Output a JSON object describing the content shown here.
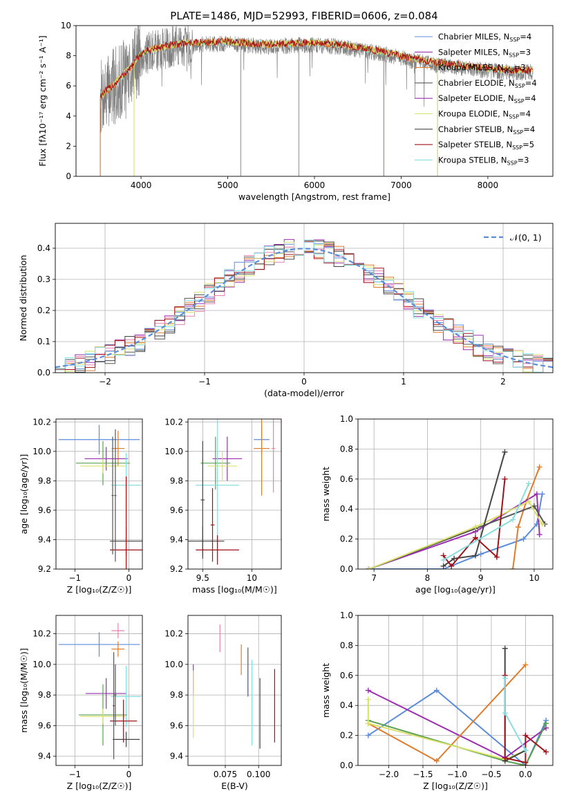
{
  "title": "PLATE=1486, MJD=52993, FIBERID=0606, z=0.084",
  "colors": {
    "chabrier_miles": "#5b8cdb",
    "salpeter_miles": "#9b2fb0",
    "kroupa_miles": "#e07b2a",
    "chabrier_elodie": "#555555",
    "salpeter_elodie": "#9b2fb0",
    "kroupa_elodie": "#d8e06a",
    "chabrier_stelib": "#444444",
    "salpeter_stelib": "#a01018",
    "kroupa_stelib": "#88dde0",
    "data": "#808080",
    "pink": "#e880b0",
    "green": "#5aa050",
    "normal": "#5b8cdb"
  },
  "chart_data": [
    {
      "id": "spectrum",
      "type": "line",
      "xlabel": "wavelength [Angstrom, rest frame]",
      "ylabel": "Flux [fλ10⁻¹⁷ erg cm⁻² s⁻¹ A⁻¹]",
      "xlim": [
        3250,
        8750
      ],
      "ylim": [
        0,
        10
      ],
      "xticks": [
        4000,
        5000,
        6000,
        7000,
        8000
      ],
      "yticks": [
        0,
        2,
        4,
        6,
        8,
        10
      ],
      "grid": false,
      "legend_position": "upper-right",
      "legend": [
        {
          "label": "Chabrier MILES, N",
          "sub": "SSP",
          "suffix": "=4",
          "color": "#5b8cdb"
        },
        {
          "label": "Salpeter MILES, N",
          "sub": "SSP",
          "suffix": "=3",
          "color": "#9b2fb0"
        },
        {
          "label": "Kroupa MILES, N",
          "sub": "SSP",
          "suffix": "=3",
          "color": "#e07b2a"
        },
        {
          "label": "Chabrier ELODIE, N",
          "sub": "SSP",
          "suffix": "=4",
          "color": "#555555"
        },
        {
          "label": "Salpeter ELODIE, N",
          "sub": "SSP",
          "suffix": "=4",
          "color": "#9b2fb0"
        },
        {
          "label": "Kroupa ELODIE, N",
          "sub": "SSP",
          "suffix": "=4",
          "color": "#d8e06a"
        },
        {
          "label": "Chabrier STELIB, N",
          "sub": "SSP",
          "suffix": "=4",
          "color": "#444444"
        },
        {
          "label": "Salpeter STELIB, N",
          "sub": "SSP",
          "suffix": "=5",
          "color": "#a01018"
        },
        {
          "label": "Kroupa STELIB, N",
          "sub": "SSP",
          "suffix": "=3",
          "color": "#88dde0"
        }
      ],
      "continuum": [
        [
          3530,
          5.2
        ],
        [
          3700,
          6.0
        ],
        [
          3900,
          7.2
        ],
        [
          4000,
          8.0
        ],
        [
          4200,
          8.4
        ],
        [
          4500,
          8.7
        ],
        [
          5000,
          8.8
        ],
        [
          5200,
          8.7
        ],
        [
          5500,
          8.6
        ],
        [
          5800,
          8.7
        ],
        [
          6000,
          8.7
        ],
        [
          6300,
          8.6
        ],
        [
          6600,
          8.3
        ],
        [
          6900,
          8.0
        ],
        [
          7100,
          7.7
        ],
        [
          7400,
          7.4
        ],
        [
          7700,
          7.2
        ],
        [
          8000,
          7.0
        ],
        [
          8300,
          6.9
        ],
        [
          8500,
          6.9
        ]
      ],
      "dropouts": [
        3530,
        3920,
        5150,
        5820,
        6800,
        7420
      ]
    },
    {
      "id": "residuals",
      "type": "histogram",
      "xlabel": "(data-model)/error",
      "ylabel": "Normed distribution",
      "xlim": [
        -2.5,
        2.5
      ],
      "ylim": [
        0,
        0.48
      ],
      "xticks": [
        -2,
        -1,
        0,
        1,
        2
      ],
      "yticks": [
        0.0,
        0.1,
        0.2,
        0.3,
        0.4
      ],
      "grid": true,
      "legend_position": "upper-right",
      "legend_label": "𝒩(0, 1)",
      "bin_width": 0.1
    },
    {
      "id": "age-vs-Z",
      "type": "errorbar",
      "xlabel": "Z [log₁₀(Z/Z☉)]",
      "ylabel": "age  [log₁₀(age/yr)]",
      "xlim": [
        -1.35,
        0.25
      ],
      "ylim": [
        9.2,
        10.22
      ],
      "xticks": [
        -1,
        0
      ],
      "yticks": [
        9.2,
        9.4,
        9.6,
        9.8,
        10.0,
        10.2
      ],
      "grid": true,
      "points": [
        {
          "x": -0.55,
          "xerr": 0.75,
          "y": 10.08,
          "yerr": 0.1,
          "color": "#5b8cdb"
        },
        {
          "x": -0.2,
          "xerr": 0.12,
          "y": 10.02,
          "yerr": 0.12,
          "color": "#e07b2a"
        },
        {
          "x": -0.42,
          "xerr": 0.4,
          "y": 9.95,
          "yerr": 0.08,
          "color": "#9b2fb0"
        },
        {
          "x": -0.48,
          "xerr": 0.5,
          "y": 9.92,
          "yerr": 0.15,
          "color": "#5aa050"
        },
        {
          "x": -0.48,
          "xerr": 0.42,
          "y": 9.9,
          "yerr": 0.05,
          "color": "#d8e06a"
        },
        {
          "x": -0.05,
          "xerr": 0.28,
          "y": 9.77,
          "yerr": 0.22,
          "color": "#88dde0"
        },
        {
          "x": -0.05,
          "xerr": 0.3,
          "y": 9.39,
          "yerr": 0.1,
          "color": "#444444"
        },
        {
          "x": -0.05,
          "xerr": 0.3,
          "y": 9.33,
          "yerr": 0.5,
          "color": "#a01018"
        },
        {
          "x": -0.3,
          "xerr": 0.02,
          "y": 9.7,
          "yerr": 0.4,
          "color": "#555555"
        },
        {
          "x": -0.25,
          "xerr": 0.02,
          "y": 9.7,
          "yerr": 0.45,
          "color": "#555555"
        }
      ]
    },
    {
      "id": "age-vs-mass",
      "type": "errorbar",
      "xlabel": "mass [log₁₀(M/M☉)]",
      "ylabel": "",
      "xlim": [
        9.35,
        10.3
      ],
      "ylim": [
        9.2,
        10.22
      ],
      "xticks": [
        9.5,
        10.0
      ],
      "yticks": [
        9.2,
        9.4,
        9.6,
        9.8,
        10.0,
        10.2
      ],
      "grid": true,
      "points": [
        {
          "x": 10.1,
          "xerr": 0.08,
          "y": 10.08,
          "yerr": 0.1,
          "color": "#5b8cdb"
        },
        {
          "x": 10.1,
          "xerr": 0.08,
          "y": 10.02,
          "yerr": 0.32,
          "color": "#e07b2a"
        },
        {
          "x": 10.22,
          "xerr": 0.02,
          "y": 10.02,
          "yerr": 0.3,
          "color": "#e880b0"
        },
        {
          "x": 9.75,
          "xerr": 0.15,
          "y": 9.95,
          "yerr": 0.15,
          "color": "#9b2fb0"
        },
        {
          "x": 9.63,
          "xerr": 0.15,
          "y": 9.92,
          "yerr": 0.18,
          "color": "#5aa050"
        },
        {
          "x": 9.7,
          "xerr": 0.15,
          "y": 9.9,
          "yerr": 0.1,
          "color": "#d8e06a"
        },
        {
          "x": 9.65,
          "xerr": 0.22,
          "y": 9.77,
          "yerr": 0.45,
          "color": "#88dde0"
        },
        {
          "x": 9.5,
          "xerr": 0.02,
          "y": 9.67,
          "yerr": 0.4,
          "color": "#444444"
        },
        {
          "x": 9.5,
          "xerr": 0.22,
          "y": 9.39,
          "yerr": 0.1,
          "color": "#444444"
        },
        {
          "x": 9.65,
          "xerr": 0.22,
          "y": 9.33,
          "yerr": 0.1,
          "color": "#a01018"
        },
        {
          "x": 9.6,
          "xerr": 0.02,
          "y": 9.5,
          "yerr": 0.25,
          "color": "#a01018"
        }
      ]
    },
    {
      "id": "massweight-vs-age",
      "type": "line",
      "xlabel": "age  [log₁₀(age/yr)]",
      "ylabel": "mass weight",
      "xlim": [
        6.7,
        10.35
      ],
      "ylim": [
        0,
        1.0
      ],
      "xticks": [
        7,
        8,
        9,
        10
      ],
      "yticks": [
        0.0,
        0.2,
        0.4,
        0.6,
        0.8,
        1.0
      ],
      "grid": true,
      "series": [
        {
          "color": "#5b8cdb",
          "points": [
            [
              6.9,
              0.0
            ],
            [
              8.3,
              0.0
            ],
            [
              9.0,
              0.1
            ],
            [
              9.8,
              0.2
            ],
            [
              10.05,
              0.3
            ],
            [
              10.15,
              0.5
            ]
          ]
        },
        {
          "color": "#e07b2a",
          "points": [
            [
              9.6,
              0.0
            ],
            [
              9.7,
              0.28
            ],
            [
              9.85,
              0.45
            ],
            [
              10.1,
              0.68
            ]
          ]
        },
        {
          "color": "#9b2fb0",
          "points": [
            [
              6.9,
              0.0
            ],
            [
              8.9,
              0.25
            ],
            [
              10.05,
              0.5
            ],
            [
              10.1,
              0.23
            ]
          ]
        },
        {
          "color": "#555555",
          "points": [
            [
              6.9,
              0.0
            ],
            [
              8.9,
              0.27
            ],
            [
              10.0,
              0.42
            ],
            [
              10.2,
              0.3
            ]
          ]
        },
        {
          "color": "#d8e06a",
          "points": [
            [
              6.9,
              0.0
            ],
            [
              8.9,
              0.28
            ],
            [
              9.9,
              0.45
            ],
            [
              10.15,
              0.3
            ]
          ]
        },
        {
          "color": "#444444",
          "points": [
            [
              8.3,
              0.02
            ],
            [
              8.5,
              0.07
            ],
            [
              8.9,
              0.09
            ],
            [
              9.45,
              0.78
            ]
          ]
        },
        {
          "color": "#a01018",
          "points": [
            [
              8.3,
              0.09
            ],
            [
              8.45,
              0.02
            ],
            [
              8.9,
              0.21
            ],
            [
              9.3,
              0.08
            ],
            [
              9.45,
              0.6
            ]
          ]
        },
        {
          "color": "#88dde0",
          "points": [
            [
              8.3,
              0.06
            ],
            [
              9.6,
              0.33
            ],
            [
              9.9,
              0.57
            ]
          ]
        }
      ]
    },
    {
      "id": "mass-vs-Z",
      "type": "errorbar",
      "xlabel": "Z [log₁₀(Z/Z☉)]",
      "ylabel": "mass [log₁₀(M/M☉)]",
      "xlim": [
        -1.35,
        0.25
      ],
      "ylim": [
        9.34,
        10.32
      ],
      "xticks": [
        -1,
        0
      ],
      "yticks": [
        9.4,
        9.6,
        9.8,
        10.0,
        10.2
      ],
      "grid": true,
      "points": [
        {
          "x": -0.2,
          "xerr": 0.12,
          "y": 10.22,
          "yerr": 0.05,
          "color": "#e880b0"
        },
        {
          "x": -0.55,
          "xerr": 0.75,
          "y": 10.13,
          "yerr": 0.08,
          "color": "#5b8cdb"
        },
        {
          "x": -0.2,
          "xerr": 0.12,
          "y": 10.1,
          "yerr": 0.05,
          "color": "#e07b2a"
        },
        {
          "x": -0.42,
          "xerr": 0.38,
          "y": 9.81,
          "yerr": 0.1,
          "color": "#9b2fb0"
        },
        {
          "x": -0.05,
          "xerr": 0.28,
          "y": 9.79,
          "yerr": 0.2,
          "color": "#88dde0"
        },
        {
          "x": -0.48,
          "xerr": 0.45,
          "y": 9.67,
          "yerr": 0.2,
          "color": "#5aa050"
        },
        {
          "x": -0.48,
          "xerr": 0.42,
          "y": 9.66,
          "yerr": 0.05,
          "color": "#d8e06a"
        },
        {
          "x": -0.1,
          "xerr": 0.25,
          "y": 9.63,
          "yerr": 0.14,
          "color": "#a01018"
        },
        {
          "x": -0.05,
          "xerr": 0.25,
          "y": 9.51,
          "yerr": 0.05,
          "color": "#444444"
        },
        {
          "x": -0.28,
          "xerr": 0.02,
          "y": 9.73,
          "yerr": 0.35,
          "color": "#555555"
        },
        {
          "x": -0.25,
          "xerr": 0.02,
          "y": 9.8,
          "yerr": 0.2,
          "color": "#555555"
        }
      ]
    },
    {
      "id": "mass-vs-ebv",
      "type": "errorbar",
      "xlabel": "E(B-V)",
      "ylabel": "",
      "xlim": [
        0.047,
        0.117
      ],
      "ylim": [
        9.34,
        10.32
      ],
      "xticks": [
        0.075,
        0.1
      ],
      "tick_labels": [
        "0.075",
        "0.100"
      ],
      "yticks": [
        9.4,
        9.6,
        9.8,
        10.0,
        10.2
      ],
      "grid": true,
      "points": [
        {
          "x": 0.071,
          "xerr": 0,
          "y": 10.17,
          "yerr": 0.09,
          "color": "#e880b0"
        },
        {
          "x": 0.087,
          "xerr": 0,
          "y": 10.03,
          "yerr": 0.1,
          "color": "#e07b2a"
        },
        {
          "x": 0.092,
          "xerr": 0,
          "y": 9.95,
          "yerr": 0.16,
          "color": "#555555"
        },
        {
          "x": 0.095,
          "xerr": 0,
          "y": 9.75,
          "yerr": 0.28,
          "color": "#88dde0"
        },
        {
          "x": 0.101,
          "xerr": 0,
          "y": 9.68,
          "yerr": 0.23,
          "color": "#444444"
        },
        {
          "x": 0.112,
          "xerr": 0,
          "y": 9.73,
          "yerr": 0.24,
          "color": "#a01018"
        },
        {
          "x": 0.051,
          "xerr": 0,
          "y": 9.9,
          "yerr": 0.1,
          "color": "#9b2fb0"
        },
        {
          "x": 0.051,
          "xerr": 0,
          "y": 9.74,
          "yerr": 0.22,
          "color": "#d8e06a"
        }
      ]
    },
    {
      "id": "massweight-vs-Z",
      "type": "line",
      "xlabel": "Z [log₁₀(Z/Z☉)]",
      "ylabel": "mass weight",
      "xlim": [
        -2.45,
        0.4
      ],
      "ylim": [
        0,
        1.0
      ],
      "xticks": [
        -2.0,
        -1.5,
        -1.0,
        -0.5,
        0.0
      ],
      "tick_labels": [
        "−2.0",
        "−1.5",
        "−1.0",
        "−0.5",
        "0.0"
      ],
      "yticks": [
        0.0,
        0.2,
        0.4,
        0.6,
        0.8,
        1.0
      ],
      "grid": true,
      "series": [
        {
          "color": "#5b8cdb",
          "points": [
            [
              -2.3,
              0.2
            ],
            [
              -1.3,
              0.5
            ],
            [
              0.0,
              0.0
            ],
            [
              0.3,
              0.3
            ]
          ]
        },
        {
          "color": "#9b2fb0",
          "points": [
            [
              -2.3,
              0.5
            ],
            [
              -0.3,
              0.05
            ],
            [
              0.3,
              0.25
            ]
          ]
        },
        {
          "color": "#e07b2a",
          "points": [
            [
              -2.3,
              0.28
            ],
            [
              -1.3,
              0.03
            ],
            [
              0.0,
              0.67
            ]
          ]
        },
        {
          "color": "#5aa050",
          "points": [
            [
              -2.3,
              0.3
            ],
            [
              -0.3,
              0.03
            ],
            [
              0.0,
              0.0
            ],
            [
              0.3,
              0.28
            ]
          ]
        },
        {
          "color": "#d8e06a",
          "points": [
            [
              -2.3,
              0.44
            ],
            [
              -2.3,
              0.28
            ],
            [
              -0.3,
              0.04
            ],
            [
              0.0,
              0.1
            ]
          ]
        },
        {
          "color": "#444444",
          "points": [
            [
              -0.3,
              0.78
            ],
            [
              -0.3,
              0.03
            ],
            [
              0.0,
              0.1
            ]
          ]
        },
        {
          "color": "#a01018",
          "points": [
            [
              -0.3,
              0.6
            ],
            [
              -0.3,
              0.05
            ],
            [
              0.0,
              0.02
            ],
            [
              0.0,
              0.2
            ],
            [
              0.3,
              0.09
            ]
          ]
        },
        {
          "color": "#88dde0",
          "points": [
            [
              -0.3,
              0.58
            ],
            [
              -0.3,
              0.35
            ],
            [
              0.0,
              0.1
            ]
          ]
        }
      ]
    }
  ]
}
